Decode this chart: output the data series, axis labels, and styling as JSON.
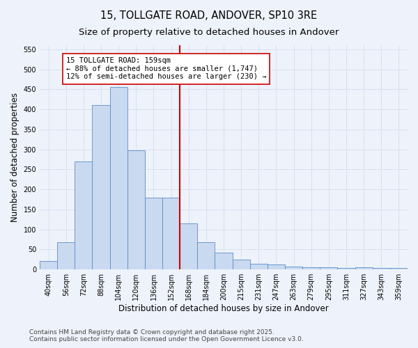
{
  "title": "15, TOLLGATE ROAD, ANDOVER, SP10 3RE",
  "subtitle": "Size of property relative to detached houses in Andover",
  "xlabel": "Distribution of detached houses by size in Andover",
  "ylabel": "Number of detached properties",
  "bins": [
    "40sqm",
    "56sqm",
    "72sqm",
    "88sqm",
    "104sqm",
    "120sqm",
    "136sqm",
    "152sqm",
    "168sqm",
    "184sqm",
    "200sqm",
    "215sqm",
    "231sqm",
    "247sqm",
    "263sqm",
    "279sqm",
    "295sqm",
    "311sqm",
    "327sqm",
    "343sqm",
    "359sqm"
  ],
  "bar_heights": [
    22,
    68,
    270,
    410,
    455,
    298,
    180,
    180,
    115,
    68,
    42,
    25,
    15,
    12,
    7,
    6,
    5,
    4,
    5,
    4,
    3
  ],
  "bar_color": "#c9d9f0",
  "bar_edge_color": "#5b8dc8",
  "bar_width": 1.0,
  "vline_color": "#cc0000",
  "annotation_text": "15 TOLLGATE ROAD: 159sqm\n← 88% of detached houses are smaller (1,747)\n12% of semi-detached houses are larger (230) →",
  "annotation_box_color": "#ffffff",
  "annotation_box_edge": "#cc0000",
  "ylim": [
    0,
    560
  ],
  "yticks": [
    0,
    50,
    100,
    150,
    200,
    250,
    300,
    350,
    400,
    450,
    500,
    550
  ],
  "footer": "Contains HM Land Registry data © Crown copyright and database right 2025.\nContains public sector information licensed under the Open Government Licence v3.0.",
  "bg_color": "#eef2fa",
  "grid_color": "#d8dff0",
  "title_fontsize": 10.5,
  "subtitle_fontsize": 9.5,
  "axis_label_fontsize": 8.5,
  "tick_fontsize": 7,
  "footer_fontsize": 6.5,
  "annotation_fontsize": 7.5,
  "vline_pos": 7.5
}
